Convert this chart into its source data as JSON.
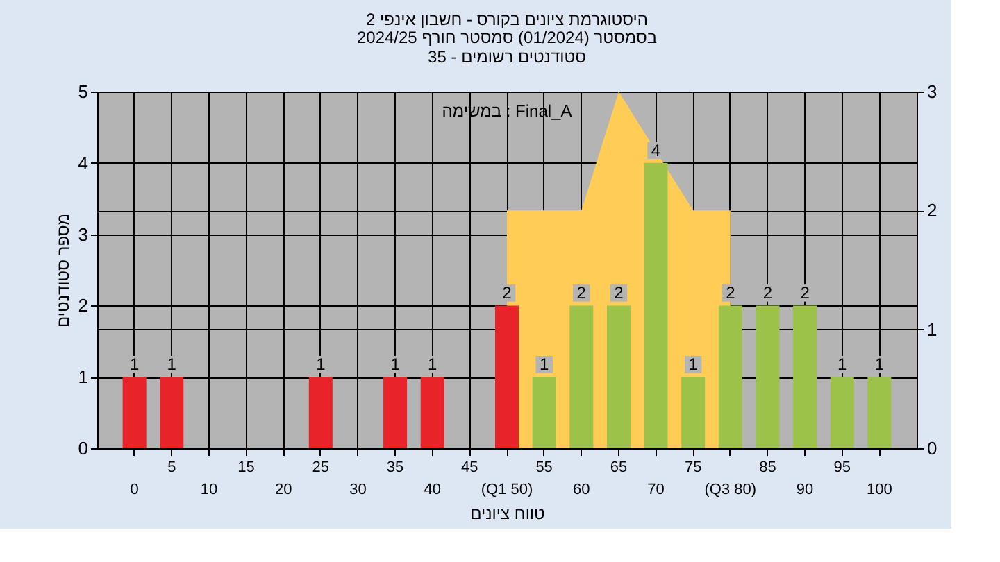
{
  "chart_data": {
    "type": "bar",
    "title": "היסטוגרמת ציונים בקורס - חשבון אינפי 2",
    "subtitle": "בסמסטר (01/2024) סמסטר חורף 2024/25\nסטודנטים רשומים - 35",
    "xlabel": "טווח ציונים",
    "ylabel": "מספר סטודנטים",
    "annotations": [
      "במשימה : Final_A"
    ],
    "categories": [
      "0",
      "5",
      "10",
      "15",
      "20",
      "25",
      "30",
      "35",
      "40",
      "45",
      "(Q1 50)",
      "55",
      "60",
      "65",
      "70",
      "75",
      "(Q3 80)",
      "85",
      "90",
      "95",
      "100"
    ],
    "series": [
      {
        "type": "area",
        "axis": "y2",
        "color": "#ffcc55",
        "values": [
          null,
          null,
          null,
          null,
          null,
          null,
          null,
          null,
          null,
          null,
          2,
          2,
          2,
          3,
          null,
          2,
          2,
          null,
          null,
          null,
          null
        ]
      },
      {
        "type": "bar",
        "value_labels": [
          "1",
          "1",
          null,
          null,
          null,
          "1",
          null,
          "1",
          "1",
          null,
          "2",
          "1",
          "2",
          "2",
          "4",
          "1",
          "2",
          "2",
          "2",
          "1",
          "1"
        ],
        "colors": [
          "#e8242a",
          "#e8242a",
          "#e8242a",
          "#e8242a",
          "#e8242a",
          "#e8242a",
          "#e8242a",
          "#e8242a",
          "#e8242a",
          "#e8242a",
          "#e8242a",
          "#9dc24a",
          "#9dc24a",
          "#9dc24a",
          "#9dc24a",
          "#9dc24a",
          "#9dc24a",
          "#9dc24a",
          "#9dc24a",
          "#9dc24a",
          "#9dc24a"
        ],
        "values": [
          1,
          1,
          null,
          null,
          null,
          1,
          null,
          1,
          1,
          null,
          2,
          1,
          2,
          2,
          4,
          1,
          2,
          2,
          2,
          1,
          1
        ]
      }
    ],
    "ylim": [
      0,
      5
    ],
    "yticks": [
      0,
      1,
      2,
      3,
      4,
      5
    ],
    "y2lim": [
      0,
      3
    ],
    "y2ticks": [
      0,
      1,
      2,
      3
    ],
    "grid": true
  }
}
